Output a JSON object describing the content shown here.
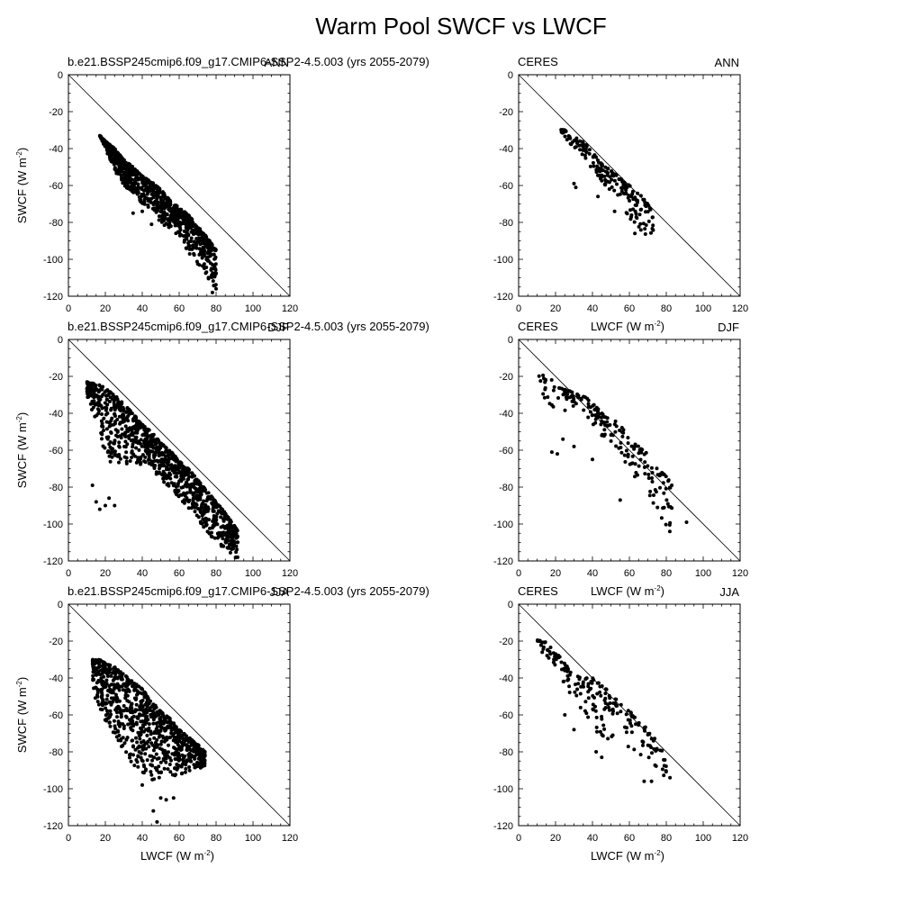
{
  "figure": {
    "title": "Warm Pool SWCF vs LWCF"
  },
  "axes": {
    "x_label_main": "LWCF (W m",
    "y_label_main": "SWCF (W m",
    "unit_exponent": "-2",
    "xlim": [
      0,
      120
    ],
    "ylim": [
      -120,
      0
    ],
    "x_ticks": [
      "0",
      "20",
      "40",
      "60",
      "80",
      "100",
      "120"
    ],
    "y_ticks": [
      "0",
      "-20",
      "-40",
      "-60",
      "-80",
      "-100",
      "-120"
    ],
    "reference_line": "1:1 (SWCF = -LWCF)"
  },
  "chart_data": [
    {
      "type": "scatter",
      "panel": "model-ann",
      "left_label": "b.e21.BSSP245cmip6.f09_g17.CMIP6-SSP2-4.5.003 (yrs 2055-2079)",
      "right_label": "ANN",
      "approx_points": 900,
      "band_profile": [
        [
          17,
          -33,
          -33
        ],
        [
          20,
          -36,
          -40
        ],
        [
          25,
          -40,
          -52
        ],
        [
          30,
          -46,
          -60
        ],
        [
          35,
          -50,
          -64
        ],
        [
          40,
          -55,
          -70
        ],
        [
          45,
          -58,
          -74
        ],
        [
          50,
          -62,
          -80
        ],
        [
          55,
          -68,
          -84
        ],
        [
          60,
          -72,
          -88
        ],
        [
          65,
          -76,
          -96
        ],
        [
          70,
          -82,
          -104
        ],
        [
          75,
          -88,
          -110
        ],
        [
          80,
          -95,
          -116
        ]
      ],
      "outliers": [
        [
          35,
          -75
        ],
        [
          40,
          -74
        ],
        [
          45,
          -81
        ],
        [
          65,
          -87
        ],
        [
          72,
          -95
        ],
        [
          78,
          -118
        ]
      ]
    },
    {
      "type": "scatter",
      "panel": "obs-ann",
      "left_label": "CERES",
      "right_label": "ANN",
      "approx_points": 200,
      "band_profile": [
        [
          22,
          -28,
          -30
        ],
        [
          28,
          -32,
          -38
        ],
        [
          35,
          -36,
          -44
        ],
        [
          40,
          -42,
          -52
        ],
        [
          45,
          -48,
          -58
        ],
        [
          50,
          -52,
          -64
        ],
        [
          55,
          -56,
          -70
        ],
        [
          60,
          -60,
          -78
        ],
        [
          65,
          -64,
          -84
        ],
        [
          70,
          -70,
          -88
        ],
        [
          73,
          -76,
          -86
        ]
      ],
      "outliers": [
        [
          30,
          -59
        ],
        [
          31,
          -61
        ],
        [
          43,
          -66
        ],
        [
          52,
          -74
        ],
        [
          63,
          -86
        ]
      ]
    },
    {
      "type": "scatter",
      "panel": "model-djf",
      "left_label": "b.e21.BSSP245cmip6.f09_g17.CMIP6-SSP2-4.5.003 (yrs 2055-2079)",
      "right_label": "DJF",
      "approx_points": 1000,
      "band_profile": [
        [
          10,
          -23,
          -30
        ],
        [
          14,
          -24,
          -44
        ],
        [
          18,
          -25,
          -56
        ],
        [
          22,
          -28,
          -66
        ],
        [
          26,
          -31,
          -70
        ],
        [
          30,
          -35,
          -68
        ],
        [
          35,
          -40,
          -66
        ],
        [
          40,
          -46,
          -68
        ],
        [
          45,
          -50,
          -70
        ],
        [
          50,
          -56,
          -76
        ],
        [
          55,
          -60,
          -80
        ],
        [
          60,
          -66,
          -86
        ],
        [
          65,
          -70,
          -92
        ],
        [
          70,
          -76,
          -98
        ],
        [
          75,
          -82,
          -104
        ],
        [
          80,
          -88,
          -110
        ],
        [
          85,
          -94,
          -114
        ],
        [
          92,
          -104,
          -120
        ]
      ],
      "outliers": [
        [
          13,
          -79
        ],
        [
          15,
          -88
        ],
        [
          17,
          -92
        ],
        [
          20,
          -90
        ],
        [
          22,
          -86
        ],
        [
          25,
          -90
        ]
      ]
    },
    {
      "type": "scatter",
      "panel": "obs-djf",
      "left_label": "CERES",
      "right_label": "DJF",
      "approx_points": 200,
      "band_profile": [
        [
          10,
          -17,
          -24
        ],
        [
          14,
          -20,
          -32
        ],
        [
          18,
          -22,
          -40
        ],
        [
          22,
          -26,
          -42
        ],
        [
          28,
          -28,
          -36
        ],
        [
          35,
          -30,
          -40
        ],
        [
          40,
          -34,
          -46
        ],
        [
          45,
          -40,
          -52
        ],
        [
          50,
          -42,
          -56
        ],
        [
          55,
          -46,
          -62
        ],
        [
          60,
          -54,
          -70
        ],
        [
          65,
          -58,
          -78
        ],
        [
          70,
          -62,
          -86
        ],
        [
          75,
          -70,
          -92
        ],
        [
          80,
          -74,
          -104
        ],
        [
          83,
          -78,
          -110
        ]
      ],
      "outliers": [
        [
          18,
          -61
        ],
        [
          21,
          -62
        ],
        [
          24,
          -54
        ],
        [
          30,
          -58
        ],
        [
          40,
          -65
        ],
        [
          55,
          -87
        ],
        [
          91,
          -99
        ]
      ]
    },
    {
      "type": "scatter",
      "panel": "model-jja",
      "left_label": "b.e21.BSSP245cmip6.f09_g17.CMIP6-SSP2-4.5.003 (yrs 2055-2079)",
      "right_label": "JJA",
      "approx_points": 900,
      "band_profile": [
        [
          13,
          -30,
          -48
        ],
        [
          17,
          -30,
          -56
        ],
        [
          20,
          -32,
          -64
        ],
        [
          25,
          -34,
          -72
        ],
        [
          30,
          -38,
          -80
        ],
        [
          35,
          -42,
          -88
        ],
        [
          40,
          -46,
          -92
        ],
        [
          45,
          -52,
          -96
        ],
        [
          50,
          -58,
          -94
        ],
        [
          55,
          -62,
          -94
        ],
        [
          60,
          -68,
          -92
        ],
        [
          65,
          -72,
          -92
        ],
        [
          70,
          -76,
          -90
        ],
        [
          74,
          -80,
          -88
        ]
      ],
      "outliers": [
        [
          40,
          -98
        ],
        [
          46,
          -112
        ],
        [
          48,
          -118
        ],
        [
          50,
          -105
        ],
        [
          53,
          -106
        ],
        [
          57,
          -105
        ]
      ]
    },
    {
      "type": "scatter",
      "panel": "obs-jja",
      "left_label": "CERES",
      "right_label": "JJA",
      "approx_points": 200,
      "band_profile": [
        [
          10,
          -19,
          -24
        ],
        [
          14,
          -20,
          -28
        ],
        [
          18,
          -24,
          -34
        ],
        [
          22,
          -28,
          -38
        ],
        [
          28,
          -36,
          -50
        ],
        [
          34,
          -40,
          -60
        ],
        [
          40,
          -40,
          -66
        ],
        [
          45,
          -44,
          -74
        ],
        [
          50,
          -48,
          -78
        ],
        [
          55,
          -54,
          -80
        ],
        [
          60,
          -58,
          -80
        ],
        [
          65,
          -62,
          -82
        ],
        [
          70,
          -68,
          -86
        ],
        [
          75,
          -74,
          -90
        ],
        [
          80,
          -84,
          -94
        ]
      ],
      "outliers": [
        [
          25,
          -60
        ],
        [
          30,
          -68
        ],
        [
          42,
          -80
        ],
        [
          45,
          -83
        ],
        [
          68,
          -96
        ],
        [
          72,
          -96
        ],
        [
          82,
          -94
        ]
      ]
    }
  ]
}
